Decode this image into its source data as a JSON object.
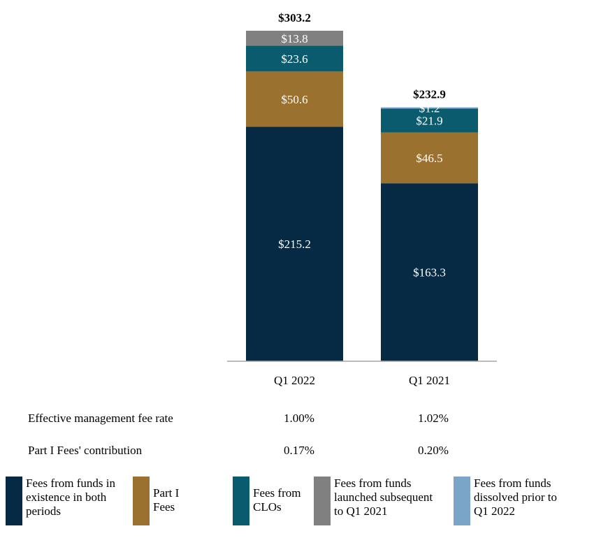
{
  "chart_data": {
    "type": "bar",
    "stacked": true,
    "categories": [
      "Q1 2022",
      "Q1 2021"
    ],
    "totals": [
      "$303.2",
      "$232.9"
    ],
    "total_values": [
      303.2,
      232.9
    ],
    "ylim": [
      0,
      303.2
    ],
    "series": [
      {
        "name": "Fees from funds in existence in both periods",
        "values": [
          215.2,
          163.3
        ],
        "labels": [
          "$215.2",
          "$163.3"
        ],
        "color": "#062a44"
      },
      {
        "name": "Part I Fees",
        "values": [
          50.6,
          46.5
        ],
        "labels": [
          "$50.6",
          "$46.5"
        ],
        "color": "#9b7130"
      },
      {
        "name": "Fees from CLOs",
        "values": [
          23.6,
          21.9
        ],
        "labels": [
          "$23.6",
          "$21.9"
        ],
        "color": "#0b5b6e"
      },
      {
        "name": "Fees from funds launched subsequent to Q1 2021",
        "values": [
          13.8,
          0
        ],
        "labels": [
          "$13.8",
          ""
        ],
        "color": "#808080"
      },
      {
        "name": "Fees from funds dissolved prior to Q1 2022",
        "values": [
          0,
          1.2
        ],
        "labels": [
          "",
          "$1.2"
        ],
        "color": "#7aa5c8"
      }
    ],
    "legend_placement": "bottom",
    "grid": false
  },
  "table": {
    "rows": [
      {
        "label": "Effective management fee rate",
        "values": [
          "1.00%",
          "1.02%"
        ]
      },
      {
        "label": "Part I Fees' contribution",
        "values": [
          "0.17%",
          "0.20%"
        ]
      }
    ]
  },
  "legend": [
    {
      "lines": [
        "Fees from funds in",
        "existence in both",
        "periods"
      ],
      "color": "#062a44"
    },
    {
      "lines": [
        "Part I",
        "Fees"
      ],
      "color": "#9b7130"
    },
    {
      "lines": [
        "Fees from",
        "CLOs"
      ],
      "color": "#0b5b6e"
    },
    {
      "lines": [
        "Fees from funds",
        "launched subsequent",
        "to Q1 2021"
      ],
      "color": "#808080"
    },
    {
      "lines": [
        "Fees from funds",
        "dissolved prior to",
        "Q1 2022"
      ],
      "color": "#7aa5c8"
    }
  ]
}
